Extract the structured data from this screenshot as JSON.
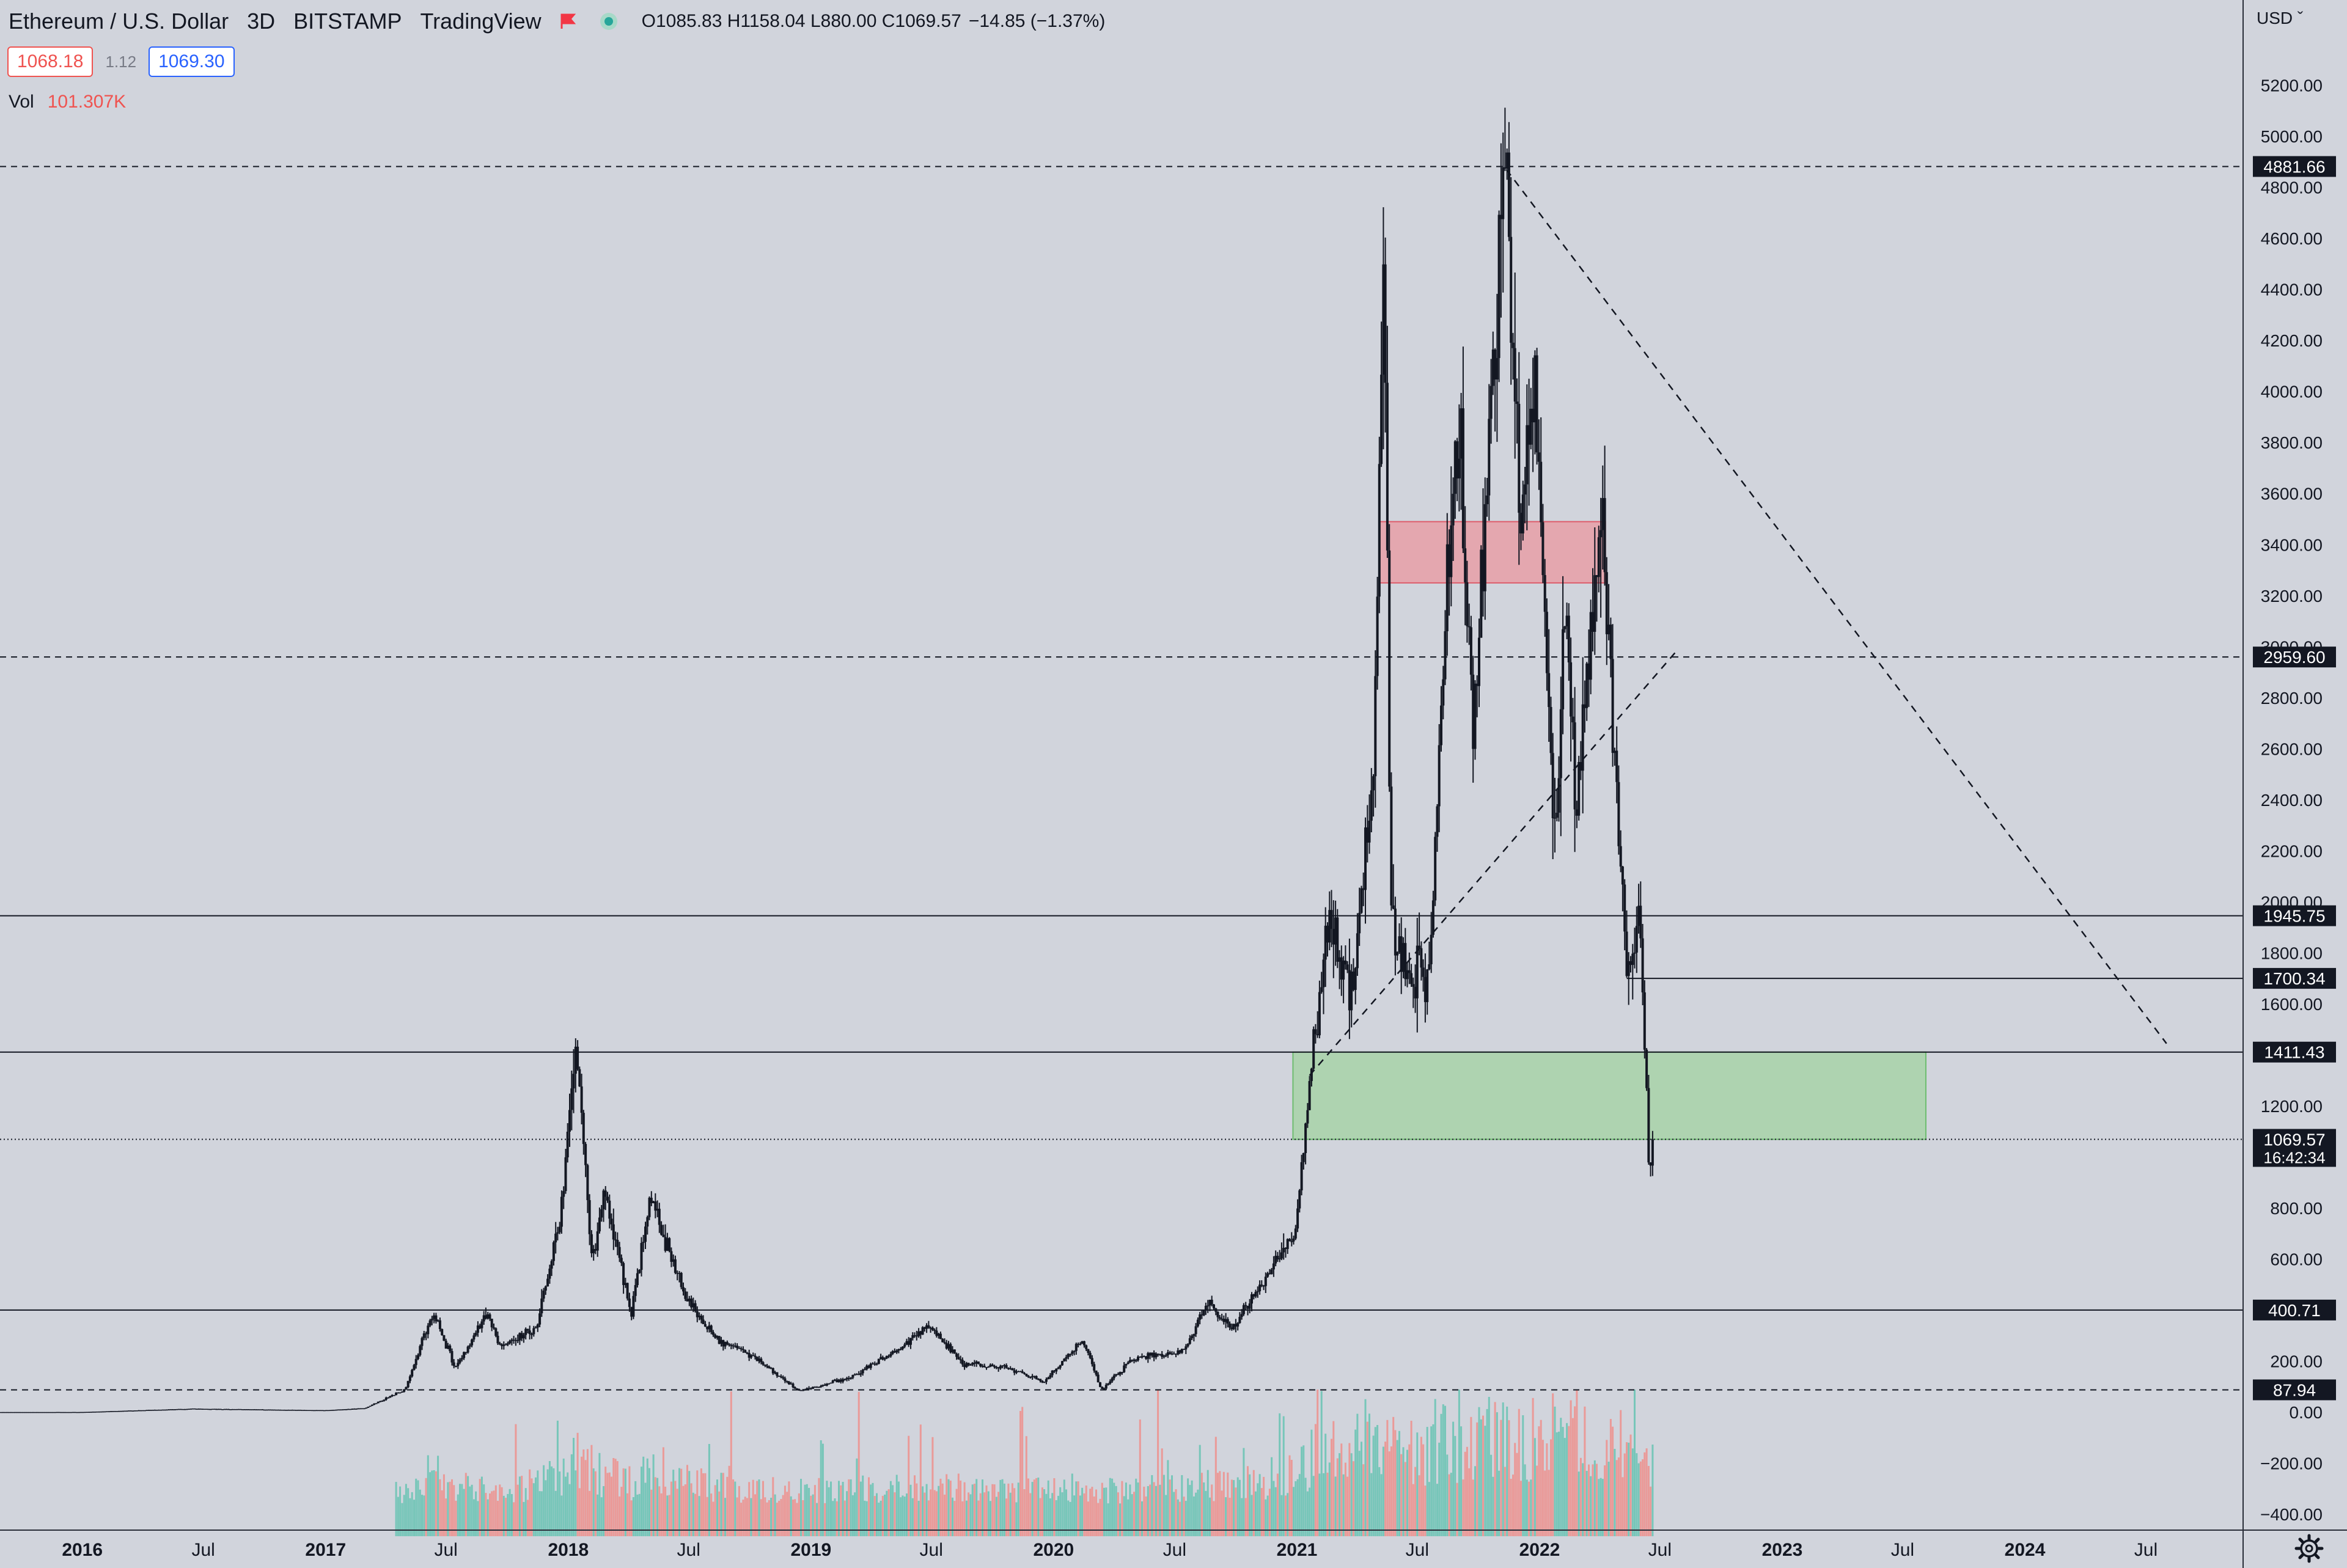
{
  "legend": {
    "symbol": "Ethereum / U.S. Dollar",
    "interval": "3D",
    "exchange": "BITSTAMP",
    "provider": "TradingView",
    "flag_icon": "flag-icon",
    "status_icon": "market-status-dot-icon",
    "ohlc": "O1085.83 H1158.04 L880.00 C1069.57",
    "change": "−14.85 (−1.37%)"
  },
  "prices": {
    "bid": "1068.18",
    "spread": "1.12",
    "ask": "1069.30"
  },
  "volume": {
    "label": "Vol",
    "value": "101.307K"
  },
  "axis": {
    "currency": "USD ˇ",
    "settings_icon": "gear-icon"
  },
  "colors": {
    "background": "#d1d4dc",
    "candle": "#131722",
    "resistance_zone": "#e8a0a8",
    "support_zone": "#a9d3a9",
    "volume_up": "#67c3b3",
    "volume_down": "#ef8f8c",
    "bid": "#ef5350",
    "ask": "#2962ff"
  },
  "chart_data": {
    "type": "candlestick",
    "title": "Ethereum / U.S. Dollar",
    "ylim": [
      -500,
      5400
    ],
    "y_ticks": [
      "5200.00",
      "5000.00",
      "4800.00",
      "4600.00",
      "4400.00",
      "4200.00",
      "4000.00",
      "3800.00",
      "3600.00",
      "3400.00",
      "3200.00",
      "3000.00",
      "2800.00",
      "2600.00",
      "2400.00",
      "2200.00",
      "2000.00",
      "1800.00",
      "1600.00",
      "1200.00",
      "800.00",
      "600.00",
      "200.00",
      "0.00",
      "−200.00",
      "−400.00"
    ],
    "x_ticks": [
      "2016",
      "Jul",
      "2017",
      "Jul",
      "2018",
      "Jul",
      "2019",
      "Jul",
      "2020",
      "Jul",
      "2021",
      "Jul",
      "2022",
      "Jul",
      "2023",
      "Jul",
      "2024",
      "Jul"
    ],
    "price_path": [
      [
        "2015-09-01",
        1
      ],
      [
        "2016-01-01",
        1
      ],
      [
        "2016-06-15",
        14
      ],
      [
        "2016-12-31",
        8
      ],
      [
        "2017-03-01",
        16
      ],
      [
        "2017-05-01",
        90
      ],
      [
        "2017-06-12",
        400
      ],
      [
        "2017-07-15",
        170
      ],
      [
        "2017-09-01",
        390
      ],
      [
        "2017-09-20",
        260
      ],
      [
        "2017-11-15",
        330
      ],
      [
        "2017-12-20",
        780
      ],
      [
        "2018-01-13",
        1418
      ],
      [
        "2018-02-06",
        600
      ],
      [
        "2018-02-25",
        880
      ],
      [
        "2018-04-05",
        380
      ],
      [
        "2018-05-05",
        830
      ],
      [
        "2018-06-30",
        430
      ],
      [
        "2018-08-15",
        280
      ],
      [
        "2018-10-05",
        220
      ],
      [
        "2018-12-14",
        84
      ],
      [
        "2019-03-01",
        135
      ],
      [
        "2019-05-15",
        250
      ],
      [
        "2019-06-26",
        340
      ],
      [
        "2019-08-20",
        190
      ],
      [
        "2019-10-15",
        180
      ],
      [
        "2019-12-18",
        120
      ],
      [
        "2020-02-14",
        285
      ],
      [
        "2020-03-13",
        90
      ],
      [
        "2020-05-01",
        210
      ],
      [
        "2020-07-15",
        240
      ],
      [
        "2020-08-20",
        440
      ],
      [
        "2020-09-23",
        320
      ],
      [
        "2020-11-20",
        550
      ],
      [
        "2020-12-31",
        730
      ],
      [
        "2021-01-20",
        1300
      ],
      [
        "2021-02-20",
        1950
      ],
      [
        "2021-03-25",
        1650
      ],
      [
        "2021-04-25",
        2500
      ],
      [
        "2021-05-12",
        4362
      ],
      [
        "2021-05-23",
        1900
      ],
      [
        "2021-06-22",
        1700
      ],
      [
        "2021-07-20",
        1720
      ],
      [
        "2021-08-15",
        3300
      ],
      [
        "2021-09-03",
        3950
      ],
      [
        "2021-09-22",
        2700
      ],
      [
        "2021-10-10",
        3500
      ],
      [
        "2021-11-10",
        4881
      ],
      [
        "2021-12-04",
        3500
      ],
      [
        "2021-12-24",
        4100
      ],
      [
        "2022-01-24",
        2200
      ],
      [
        "2022-02-10",
        3200
      ],
      [
        "2022-02-24",
        2300
      ],
      [
        "2022-04-03",
        3580
      ],
      [
        "2022-05-12",
        1700
      ],
      [
        "2022-06-01",
        1950
      ],
      [
        "2022-06-14",
        1000
      ],
      [
        "2022-06-18",
        880
      ],
      [
        "2022-06-20",
        1069.57
      ]
    ],
    "horizontal_levels": [
      {
        "value": 4881.66,
        "label": "4881.66",
        "style": "dashed"
      },
      {
        "value": 2959.6,
        "label": "2959.60",
        "style": "dashed"
      },
      {
        "value": 1945.75,
        "label": "1945.75",
        "style": "solid"
      },
      {
        "value": 1700.34,
        "label": "1700.34",
        "style": "solid",
        "from": "2022-05-12"
      },
      {
        "value": 1411.43,
        "label": "1411.43",
        "style": "solid"
      },
      {
        "value": 1069.57,
        "label": "1069.57",
        "style": "dotted",
        "countdown": "16:42:34"
      },
      {
        "value": 400.71,
        "label": "400.71",
        "style": "solid"
      },
      {
        "value": 87.94,
        "label": "87.94",
        "style": "dashed"
      }
    ],
    "zones": [
      {
        "name": "resistance",
        "from": "2021-05-05",
        "to": "2022-04-10",
        "low": 3250,
        "high": 3490
      },
      {
        "name": "support",
        "from": "2020-12-26",
        "to": "2023-08-05",
        "low": 1069.57,
        "high": 1411.43
      }
    ],
    "trendlines": [
      {
        "from": [
          "2021-11-12",
          4870
        ],
        "to": [
          "2024-08-01",
          1445
        ],
        "style": "dashed"
      },
      {
        "from": [
          "2021-01-20",
          1320
        ],
        "to": [
          "2022-07-25",
          2980
        ],
        "style": "dashed"
      }
    ],
    "volume_axis_zero": 0,
    "grid": false
  }
}
